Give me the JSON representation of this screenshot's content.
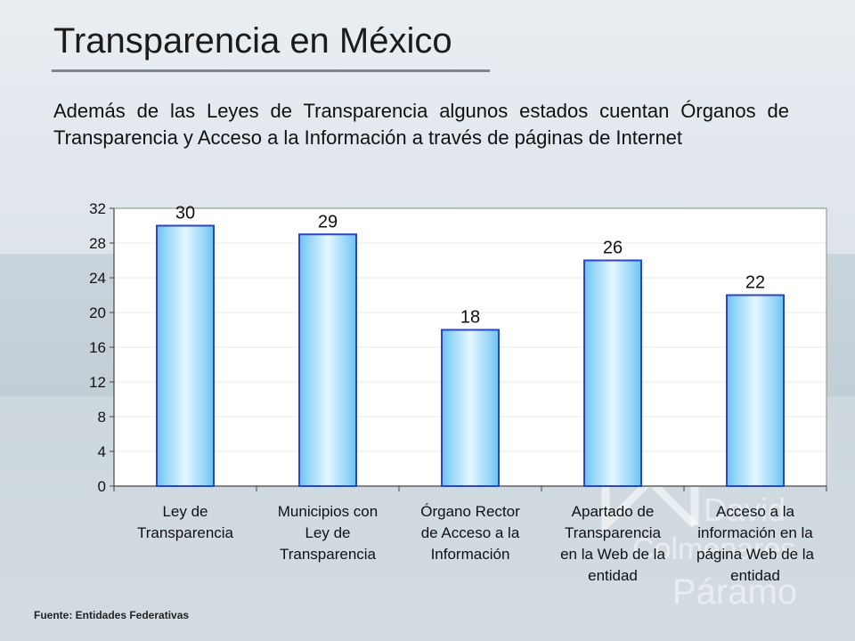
{
  "slide": {
    "title": "Transparencia en México",
    "intro": "Además de las Leyes de Transparencia algunos estados cuentan Órganos de Transparencia y Acceso a la Información a través de páginas de Internet",
    "source": "Fuente: Entidades Federativas",
    "watermark_text": [
      "David",
      "Colmenares",
      "Páramo"
    ]
  },
  "chart_data": {
    "type": "bar",
    "categories": [
      [
        "Ley de",
        "Transparencia"
      ],
      [
        "Municipios con",
        "Ley de",
        "Transparencia"
      ],
      [
        "Órgano Rector",
        "de Acceso a la",
        "Información"
      ],
      [
        "Apartado de",
        "Transparencia",
        "en la Web de la",
        "entidad"
      ],
      [
        "Acceso a la",
        "información en la",
        "página Web de la",
        "entidad"
      ]
    ],
    "values": [
      30,
      29,
      18,
      26,
      22
    ],
    "yticks": [
      0,
      4,
      8,
      12,
      16,
      20,
      24,
      28,
      32
    ],
    "ylim": [
      0,
      32
    ],
    "grid": true,
    "legend": "none",
    "colors": {
      "bar_fill_edge": "#6fc4f2",
      "bar_fill_center": "#e6f8ff",
      "bar_stroke": "#2a45c8",
      "grid": "#e8e8e8",
      "axis": "#444444",
      "plot_bg": "#ffffff"
    }
  }
}
